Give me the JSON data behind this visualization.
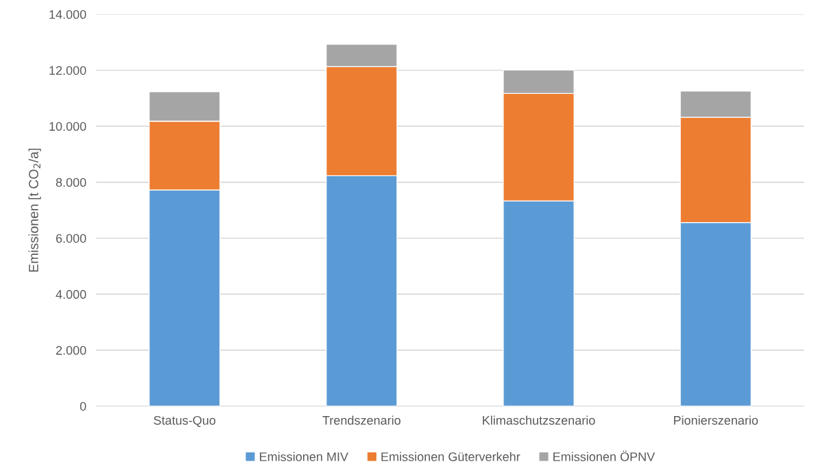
{
  "chart_data": {
    "type": "bar",
    "stacked": true,
    "ylabel": "Emissionen [t CO$_{2}$/a]",
    "categories": [
      "Status-Quo",
      "Trendszenario",
      "Klimaschutzszenario",
      "Pionierszenario"
    ],
    "series": [
      {
        "name": "Emissionen MIV",
        "color": "#5b9bd5",
        "values": [
          7720,
          8230,
          7330,
          6560
        ]
      },
      {
        "name": "Emissionen Güterverkehr",
        "color": "#ed7d31",
        "values": [
          2460,
          3900,
          3840,
          3760
        ]
      },
      {
        "name": "Emissionen ÖPNV",
        "color": "#a5a5a5",
        "values": [
          1050,
          800,
          840,
          940
        ]
      }
    ],
    "ylim": [
      0,
      14000
    ],
    "yticks": [
      {
        "value": 0,
        "label": "0"
      },
      {
        "value": 2000,
        "label": "2.000"
      },
      {
        "value": 4000,
        "label": "4.000"
      },
      {
        "value": 6000,
        "label": "6.000"
      },
      {
        "value": 8000,
        "label": "8.000"
      },
      {
        "value": 10000,
        "label": "10.000"
      },
      {
        "value": 12000,
        "label": "12.000"
      },
      {
        "value": 14000,
        "label": "14.000"
      }
    ],
    "grid": "y",
    "legend": "bottom"
  }
}
